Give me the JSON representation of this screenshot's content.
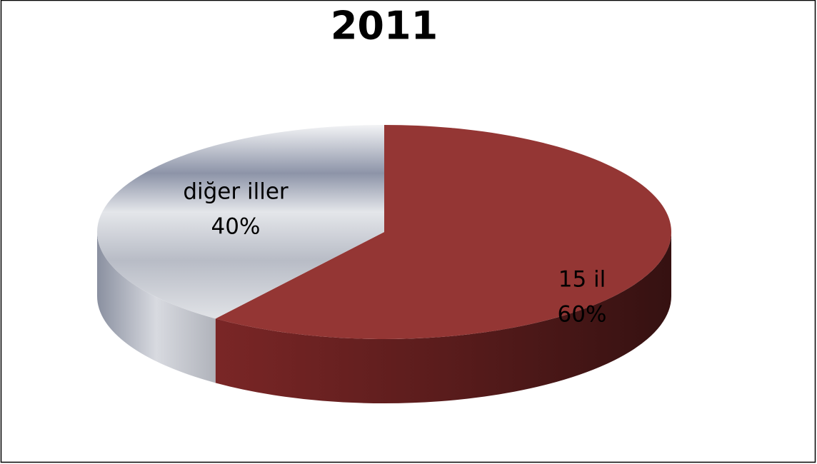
{
  "chart_data": {
    "type": "pie",
    "title": "2011",
    "categories": [
      "15 il",
      "diğer iller"
    ],
    "values": [
      60,
      40
    ],
    "value_labels": [
      "60%",
      "40%"
    ],
    "colors": [
      "#943634",
      "#9ea3b3"
    ]
  }
}
